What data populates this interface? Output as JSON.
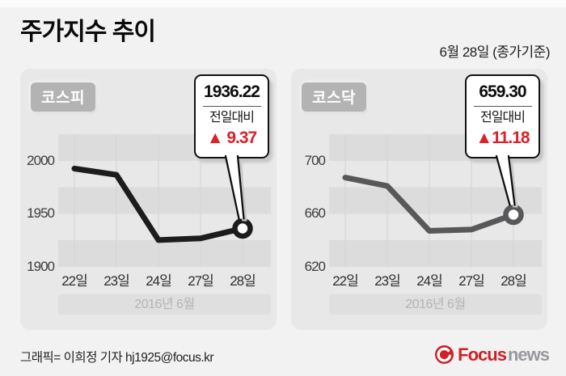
{
  "page": {
    "title": "주가지수 추이",
    "date_note": "6월 28일 (종가기준)",
    "credit": "그래픽= 이희정 기자 hj1925@focus.kr"
  },
  "logo": {
    "brand_primary": "Focus",
    "brand_secondary": "news"
  },
  "colors": {
    "accent_red": "#dc2127",
    "logo_red": "#cd2027",
    "panel_bg": "#e8e8e8",
    "stripe_dark": "#dcdcdc",
    "kospi_line": "#1c1c1c",
    "kosdaq_line": "#58585a",
    "gridline": "#d6d6d6"
  },
  "chart_data": [
    {
      "type": "line",
      "title": "코스피",
      "categories": [
        "22일",
        "23일",
        "24일",
        "27일",
        "28일"
      ],
      "values": [
        1992.59,
        1986.71,
        1925.24,
        1926.85,
        1936.22
      ],
      "y_ticks": [
        2000,
        1950,
        1900
      ],
      "ylim": [
        1900,
        2025
      ],
      "x_axis_label": "2016년 6월",
      "line_color": "#1c1c1c",
      "legend_position": "none",
      "grid": "horizontal-bands+vertical-lines",
      "callout": {
        "value": "1936.22",
        "label": "전일대비",
        "change": "▲ 9.37"
      }
    },
    {
      "type": "line",
      "title": "코스닥",
      "categories": [
        "22일",
        "23일",
        "24일",
        "27일",
        "28일"
      ],
      "values": [
        687.33,
        681.0,
        647.16,
        648.12,
        659.3
      ],
      "y_ticks": [
        700,
        660,
        620
      ],
      "ylim": [
        620,
        720
      ],
      "x_axis_label": "2016년 6월",
      "line_color": "#58585a",
      "legend_position": "none",
      "grid": "horizontal-bands+vertical-lines",
      "callout": {
        "value": "659.30",
        "label": "전일대비",
        "change": "▲11.18"
      }
    }
  ]
}
